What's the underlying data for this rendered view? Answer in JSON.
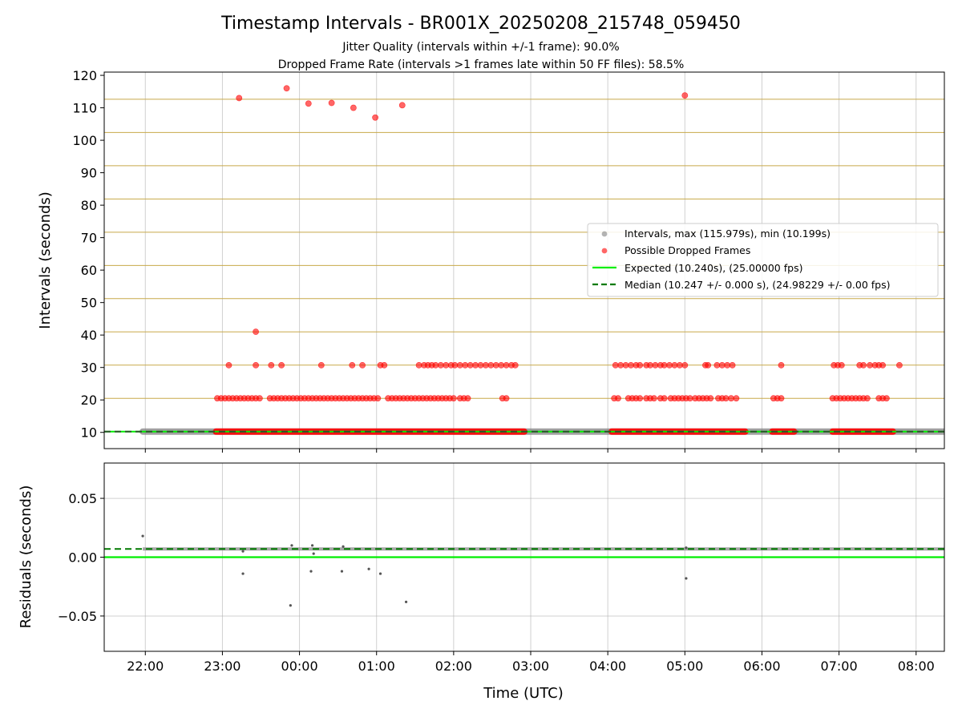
{
  "chart_data": [
    {
      "type": "scatter",
      "panel": "intervals",
      "title": "Timestamp Intervals - BR001X_20250208_215748_059450",
      "subtitle_lines": [
        "Jitter Quality (intervals within +/-1 frame): 90.0%",
        "Dropped Frame Rate (intervals >1 frames late within 50 FF files): 58.5%"
      ],
      "xlabel": "Time (UTC)",
      "ylabel": "Intervals (seconds)",
      "xlim": [
        "21:28",
        "08:22"
      ],
      "ylim": [
        5,
        121
      ],
      "yticks": [
        10,
        20,
        30,
        40,
        50,
        60,
        70,
        80,
        90,
        100,
        110,
        120
      ],
      "xticks": [
        "22:00",
        "23:00",
        "00:00",
        "01:00",
        "02:00",
        "03:00",
        "04:00",
        "05:00",
        "06:00",
        "07:00",
        "08:00"
      ],
      "grid": true,
      "legend_placement": "center-right",
      "colors": {
        "intervals": "#808080",
        "dropped": "#ff0000",
        "expected": "#00ee00",
        "median": "#007a00",
        "frame_lines": "#c8a94a"
      },
      "frame_multiple_lines": [
        10.24,
        20.48,
        30.72,
        40.96,
        51.2,
        61.44,
        71.68,
        81.92,
        92.16,
        102.4,
        112.64
      ],
      "expected_line": 10.24,
      "median_line": 10.247,
      "series": [
        {
          "name": "Intervals, max (115.979s), min (10.199s)",
          "role": "intervals",
          "band": {
            "from": "21:58",
            "to": "08:22",
            "y": 10.25
          }
        },
        {
          "name": "Possible Dropped Frames",
          "role": "dropped",
          "bands": [
            {
              "from": "22:55",
              "to": "02:55",
              "y": 10.24
            },
            {
              "from": "04:03",
              "to": "05:47",
              "y": 10.24
            },
            {
              "from": "06:08",
              "to": "06:25",
              "y": 10.24
            },
            {
              "from": "06:55",
              "to": "07:42",
              "y": 10.24
            }
          ],
          "points": [
            [
              "23:13",
              113.0
            ],
            [
              "23:50",
              116.0
            ],
            [
              "00:07",
              111.3
            ],
            [
              "00:25",
              111.5
            ],
            [
              "00:42",
              110.0
            ],
            [
              "00:59",
              107.0
            ],
            [
              "01:20",
              110.8
            ],
            [
              "05:00",
              113.8
            ],
            [
              "23:26",
              41.0
            ],
            [
              "23:05",
              30.7
            ],
            [
              "23:26",
              30.7
            ],
            [
              "23:38",
              30.7
            ],
            [
              "23:46",
              30.7
            ],
            [
              "00:17",
              30.7
            ],
            [
              "00:41",
              30.7
            ],
            [
              "00:49",
              30.7
            ],
            [
              "01:03",
              30.7
            ],
            [
              "01:06",
              30.7
            ],
            [
              "01:33",
              30.7
            ],
            [
              "01:37",
              30.7
            ],
            [
              "01:40",
              30.7
            ],
            [
              "01:43",
              30.7
            ],
            [
              "01:46",
              30.7
            ],
            [
              "01:50",
              30.7
            ],
            [
              "01:54",
              30.7
            ],
            [
              "01:58",
              30.7
            ],
            [
              "02:01",
              30.7
            ],
            [
              "02:05",
              30.7
            ],
            [
              "02:09",
              30.7
            ],
            [
              "02:13",
              30.7
            ],
            [
              "02:17",
              30.7
            ],
            [
              "02:21",
              30.7
            ],
            [
              "02:25",
              30.7
            ],
            [
              "02:29",
              30.7
            ],
            [
              "02:33",
              30.7
            ],
            [
              "02:37",
              30.7
            ],
            [
              "02:41",
              30.7
            ],
            [
              "02:45",
              30.7
            ],
            [
              "02:48",
              30.7
            ],
            [
              "04:06",
              30.7
            ],
            [
              "04:10",
              30.7
            ],
            [
              "04:14",
              30.7
            ],
            [
              "04:18",
              30.7
            ],
            [
              "04:22",
              30.7
            ],
            [
              "04:25",
              30.7
            ],
            [
              "04:30",
              30.7
            ],
            [
              "04:33",
              30.7
            ],
            [
              "04:37",
              30.7
            ],
            [
              "04:41",
              30.7
            ],
            [
              "04:44",
              30.7
            ],
            [
              "04:48",
              30.7
            ],
            [
              "04:52",
              30.7
            ],
            [
              "04:56",
              30.7
            ],
            [
              "05:00",
              30.7
            ],
            [
              "05:16",
              30.7
            ],
            [
              "05:18",
              30.7
            ],
            [
              "05:25",
              30.7
            ],
            [
              "05:29",
              30.7
            ],
            [
              "05:33",
              30.7
            ],
            [
              "05:37",
              30.7
            ],
            [
              "06:15",
              30.7
            ],
            [
              "06:56",
              30.7
            ],
            [
              "06:59",
              30.7
            ],
            [
              "07:02",
              30.7
            ],
            [
              "07:16",
              30.7
            ],
            [
              "07:19",
              30.7
            ],
            [
              "07:24",
              30.7
            ],
            [
              "07:28",
              30.7
            ],
            [
              "07:31",
              30.7
            ],
            [
              "07:34",
              30.7
            ],
            [
              "07:47",
              30.7
            ],
            [
              "22:56",
              20.5
            ],
            [
              "22:59",
              20.5
            ],
            [
              "23:02",
              20.5
            ],
            [
              "23:05",
              20.5
            ],
            [
              "23:08",
              20.5
            ],
            [
              "23:11",
              20.5
            ],
            [
              "23:14",
              20.5
            ],
            [
              "23:17",
              20.5
            ],
            [
              "23:20",
              20.5
            ],
            [
              "23:23",
              20.5
            ],
            [
              "23:26",
              20.5
            ],
            [
              "23:29",
              20.5
            ],
            [
              "23:37",
              20.5
            ],
            [
              "23:40",
              20.5
            ],
            [
              "23:43",
              20.5
            ],
            [
              "23:46",
              20.5
            ],
            [
              "23:49",
              20.5
            ],
            [
              "23:52",
              20.5
            ],
            [
              "23:55",
              20.5
            ],
            [
              "23:58",
              20.5
            ],
            [
              "00:01",
              20.5
            ],
            [
              "00:04",
              20.5
            ],
            [
              "00:07",
              20.5
            ],
            [
              "00:10",
              20.5
            ],
            [
              "00:13",
              20.5
            ],
            [
              "00:16",
              20.5
            ],
            [
              "00:19",
              20.5
            ],
            [
              "00:22",
              20.5
            ],
            [
              "00:25",
              20.5
            ],
            [
              "00:28",
              20.5
            ],
            [
              "00:31",
              20.5
            ],
            [
              "00:34",
              20.5
            ],
            [
              "00:37",
              20.5
            ],
            [
              "00:40",
              20.5
            ],
            [
              "00:43",
              20.5
            ],
            [
              "00:46",
              20.5
            ],
            [
              "00:49",
              20.5
            ],
            [
              "00:52",
              20.5
            ],
            [
              "00:55",
              20.5
            ],
            [
              "00:58",
              20.5
            ],
            [
              "01:01",
              20.5
            ],
            [
              "01:09",
              20.5
            ],
            [
              "01:12",
              20.5
            ],
            [
              "01:15",
              20.5
            ],
            [
              "01:18",
              20.5
            ],
            [
              "01:21",
              20.5
            ],
            [
              "01:24",
              20.5
            ],
            [
              "01:27",
              20.5
            ],
            [
              "01:30",
              20.5
            ],
            [
              "01:33",
              20.5
            ],
            [
              "01:36",
              20.5
            ],
            [
              "01:39",
              20.5
            ],
            [
              "01:42",
              20.5
            ],
            [
              "01:45",
              20.5
            ],
            [
              "01:48",
              20.5
            ],
            [
              "01:51",
              20.5
            ],
            [
              "01:54",
              20.5
            ],
            [
              "01:57",
              20.5
            ],
            [
              "02:00",
              20.5
            ],
            [
              "02:05",
              20.5
            ],
            [
              "02:08",
              20.5
            ],
            [
              "02:11",
              20.5
            ],
            [
              "02:38",
              20.5
            ],
            [
              "02:41",
              20.5
            ],
            [
              "04:05",
              20.5
            ],
            [
              "04:08",
              20.5
            ],
            [
              "04:16",
              20.5
            ],
            [
              "04:19",
              20.5
            ],
            [
              "04:22",
              20.5
            ],
            [
              "04:25",
              20.5
            ],
            [
              "04:30",
              20.5
            ],
            [
              "04:33",
              20.5
            ],
            [
              "04:36",
              20.5
            ],
            [
              "04:41",
              20.5
            ],
            [
              "04:44",
              20.5
            ],
            [
              "04:49",
              20.5
            ],
            [
              "04:52",
              20.5
            ],
            [
              "04:55",
              20.5
            ],
            [
              "04:58",
              20.5
            ],
            [
              "05:01",
              20.5
            ],
            [
              "05:04",
              20.5
            ],
            [
              "05:08",
              20.5
            ],
            [
              "05:11",
              20.5
            ],
            [
              "05:14",
              20.5
            ],
            [
              "05:17",
              20.5
            ],
            [
              "05:20",
              20.5
            ],
            [
              "05:26",
              20.5
            ],
            [
              "05:29",
              20.5
            ],
            [
              "05:32",
              20.5
            ],
            [
              "05:36",
              20.5
            ],
            [
              "05:40",
              20.5
            ],
            [
              "06:09",
              20.5
            ],
            [
              "06:12",
              20.5
            ],
            [
              "06:15",
              20.5
            ],
            [
              "06:55",
              20.5
            ],
            [
              "06:58",
              20.5
            ],
            [
              "07:01",
              20.5
            ],
            [
              "07:04",
              20.5
            ],
            [
              "07:07",
              20.5
            ],
            [
              "07:10",
              20.5
            ],
            [
              "07:13",
              20.5
            ],
            [
              "07:16",
              20.5
            ],
            [
              "07:19",
              20.5
            ],
            [
              "07:22",
              20.5
            ],
            [
              "07:31",
              20.5
            ],
            [
              "07:34",
              20.5
            ],
            [
              "07:37",
              20.5
            ]
          ]
        },
        {
          "name": "Expected (10.240s), (25.00000 fps)",
          "role": "expected",
          "type": "line",
          "y": 10.24
        },
        {
          "name": "Median (10.247 +/- 0.000 s), (24.98229 +/- 0.00 fps)",
          "role": "median",
          "type": "dashed-line",
          "y": 10.247
        }
      ]
    },
    {
      "type": "scatter",
      "panel": "residuals",
      "xlabel": "Time (UTC)",
      "ylabel": "Residuals (seconds)",
      "xlim": [
        "21:28",
        "08:22"
      ],
      "ylim": [
        -0.08,
        0.08
      ],
      "yticks": [
        0.05,
        0.0,
        -0.05
      ],
      "ytick_labels": [
        "0.05",
        "0.00",
        "−0.05"
      ],
      "xticks": [
        "22:00",
        "23:00",
        "00:00",
        "01:00",
        "02:00",
        "03:00",
        "04:00",
        "05:00",
        "06:00",
        "07:00",
        "08:00"
      ],
      "grid": true,
      "expected_line": 0.0,
      "median_line": 0.007,
      "band": {
        "from": "21:58",
        "to": "08:22",
        "y": 0.007
      },
      "points": [
        [
          "21:58",
          0.018
        ],
        [
          "23:16",
          -0.014
        ],
        [
          "23:16",
          0.005
        ],
        [
          "23:54",
          0.01
        ],
        [
          "23:53",
          -0.041
        ],
        [
          "00:09",
          -0.012
        ],
        [
          "00:11",
          0.003
        ],
        [
          "00:10",
          0.01
        ],
        [
          "00:33",
          -0.012
        ],
        [
          "00:34",
          0.009
        ],
        [
          "00:54",
          -0.01
        ],
        [
          "01:03",
          -0.014
        ],
        [
          "01:23",
          -0.038
        ],
        [
          "05:01",
          -0.018
        ],
        [
          "05:01",
          0.008
        ]
      ]
    }
  ]
}
